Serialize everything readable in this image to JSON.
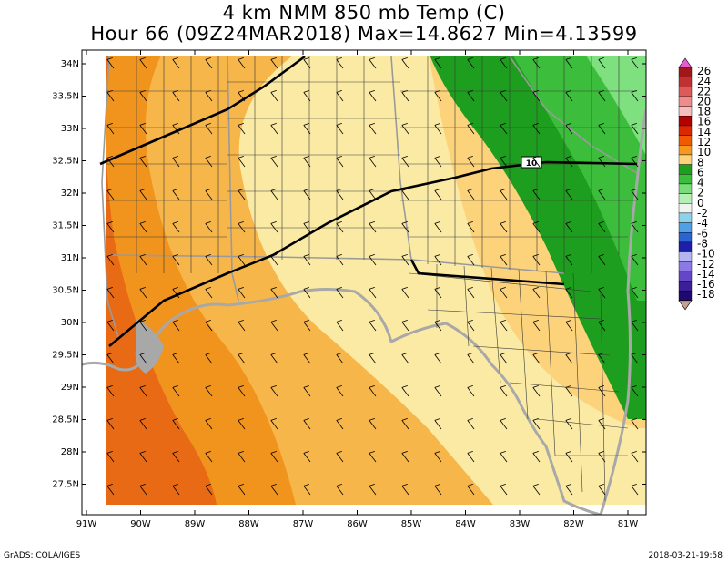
{
  "title": {
    "line1": "4 km NMM 850 mb Temp (C)",
    "line2": "Hour 66 (09Z24MAR2018) Max=14.8627 Min=4.13599"
  },
  "map": {
    "lat_labels": [
      "34N",
      "33.5N",
      "33N",
      "32.5N",
      "32N",
      "31.5N",
      "31N",
      "30.5N",
      "30N",
      "29.5N",
      "29N",
      "28.5N",
      "28N",
      "27.5N"
    ],
    "lon_labels": [
      "91W",
      "90W",
      "89W",
      "88W",
      "87W",
      "86W",
      "85W",
      "84W",
      "83W",
      "82W",
      "81W"
    ],
    "highway_shield": "10"
  },
  "colorbar": {
    "labels": [
      "26",
      "24",
      "22",
      "20",
      "18",
      "16",
      "14",
      "12",
      "10",
      "8",
      "6",
      "4",
      "2",
      "0",
      "-2",
      "-4",
      "-6",
      "-8",
      "-10",
      "-12",
      "-14",
      "-16",
      "-18"
    ],
    "colors": [
      "#a01818",
      "#c03232",
      "#dc5a5a",
      "#ee8c8c",
      "#f7bcbc",
      "#b40000",
      "#dc2800",
      "#f05a00",
      "#f7981e",
      "#fcd27a",
      "#1ea01e",
      "#3cbe3c",
      "#78dc78",
      "#b4f0b4",
      "#eef5ee",
      "#8cd2eb",
      "#50a0e6",
      "#2864d2",
      "#1e1eaa",
      "#b4b4f0",
      "#8c78e6",
      "#6446c8",
      "#3c1e96",
      "#1e0a6e"
    ],
    "top_color": "#e85ad0",
    "bottom_color": "#c8a08c"
  },
  "footer": {
    "left": "GrADS: COLA/IGES",
    "right": "2018-03-21-19:58"
  }
}
